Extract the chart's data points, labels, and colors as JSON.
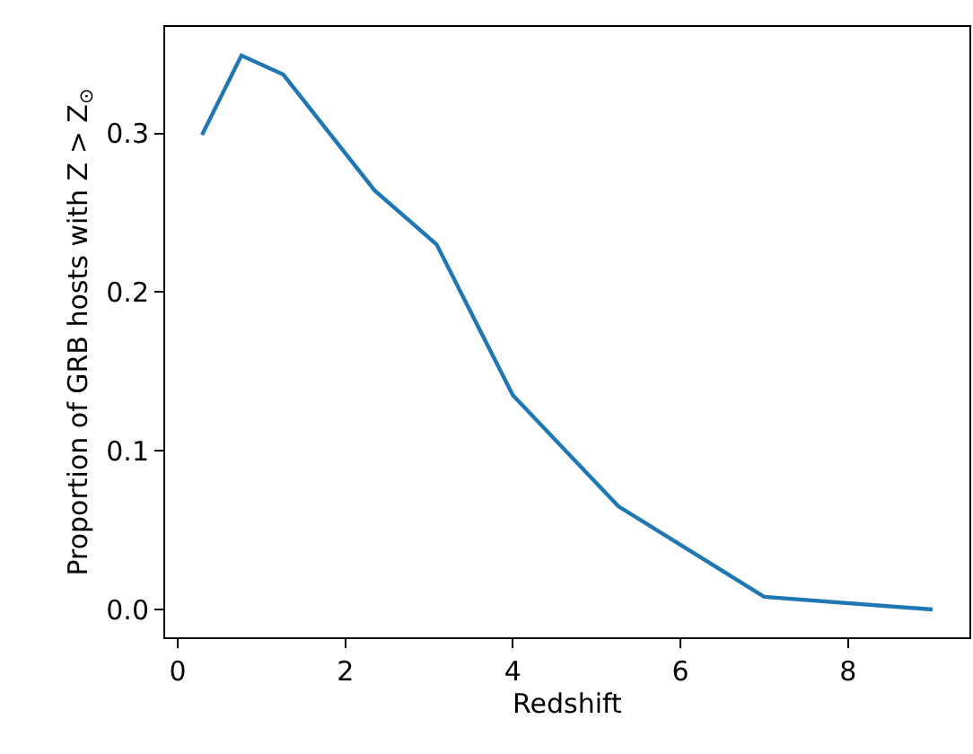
{
  "chart_data": {
    "type": "line",
    "xlabel": "Redshift",
    "ylabel": "Proportion of GRB hosts with Z > Z$_{⊙}$",
    "x": [
      0.29,
      0.76,
      1.26,
      2.35,
      3.09,
      4.0,
      5.26,
      7.0,
      9.01
    ],
    "series": [
      {
        "color": "#1f77b4",
        "values": [
          0.299,
          0.349,
          0.337,
          0.264,
          0.23,
          0.135,
          0.065,
          0.008,
          0.0
        ]
      }
    ],
    "xlim": [
      -0.15,
      9.45
    ],
    "ylim": [
      -0.0175,
      0.367
    ],
    "xticks": [
      0,
      2,
      4,
      6,
      8
    ],
    "yticks": [
      {
        "value": 0,
        "label": "0.0"
      },
      {
        "value": 0.1,
        "label": "0.1"
      },
      {
        "value": 0.2,
        "label": "0.2"
      },
      {
        "value": 0.3,
        "label": "0.3"
      }
    ],
    "marker": "none",
    "line_style": "solid"
  }
}
